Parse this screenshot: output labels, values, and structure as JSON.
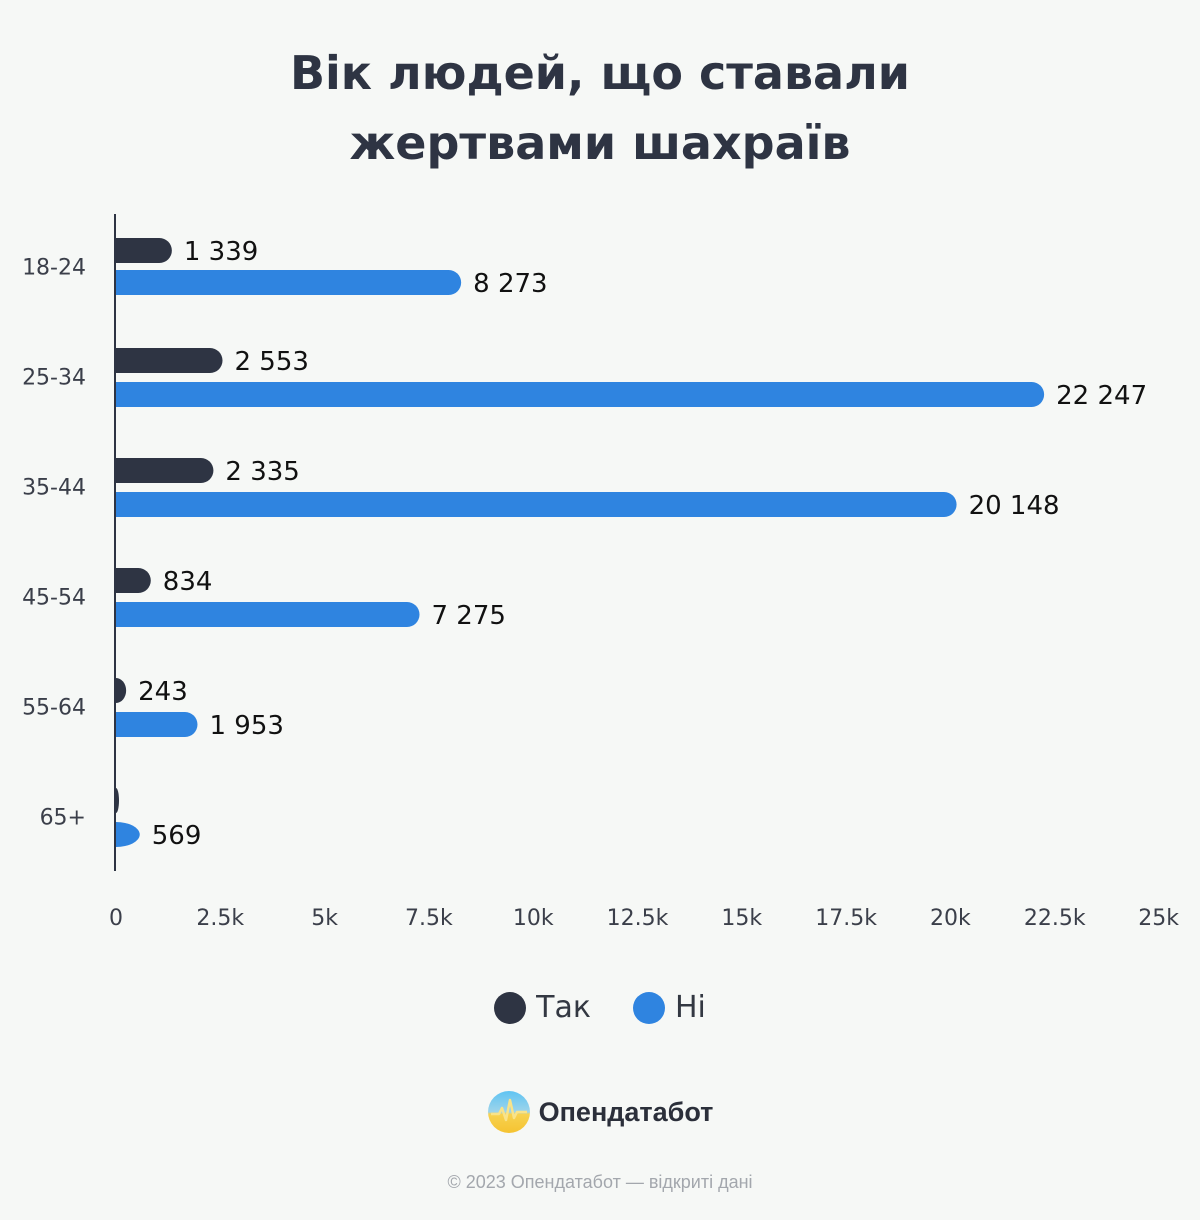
{
  "chart_data": {
    "type": "bar",
    "orientation": "horizontal",
    "title": "Вік людей, що ставали жертвами шахраїв",
    "categories": [
      "18-24",
      "25-34",
      "35-44",
      "45-54",
      "55-64",
      "65+"
    ],
    "series": [
      {
        "name": "Так",
        "color": "#2e3443",
        "values": [
          1339,
          2553,
          2335,
          834,
          243,
          0
        ],
        "labels": [
          "1 339",
          "2 553",
          "2 335",
          "834",
          "243",
          ""
        ]
      },
      {
        "name": "Ні",
        "color": "#2f84e0",
        "values": [
          8273,
          22247,
          20148,
          7275,
          1953,
          569
        ],
        "labels": [
          "8 273",
          "22 247",
          "20 148",
          "7 275",
          "1 953",
          "569"
        ]
      }
    ],
    "xlim": [
      0,
      25000
    ],
    "xticks": [
      0,
      2500,
      5000,
      7500,
      10000,
      12500,
      15000,
      17500,
      20000,
      22500,
      25000
    ],
    "xtick_labels": [
      "0",
      "2.5k",
      "5k",
      "7.5k",
      "10k",
      "12.5k",
      "15k",
      "17.5k",
      "20k",
      "22.5k",
      "25k"
    ],
    "grid": false,
    "legend": "bottom-center"
  },
  "branding": {
    "name": "Опендатабот",
    "footer": "© 2023 Опендатабот — відкриті дані"
  }
}
